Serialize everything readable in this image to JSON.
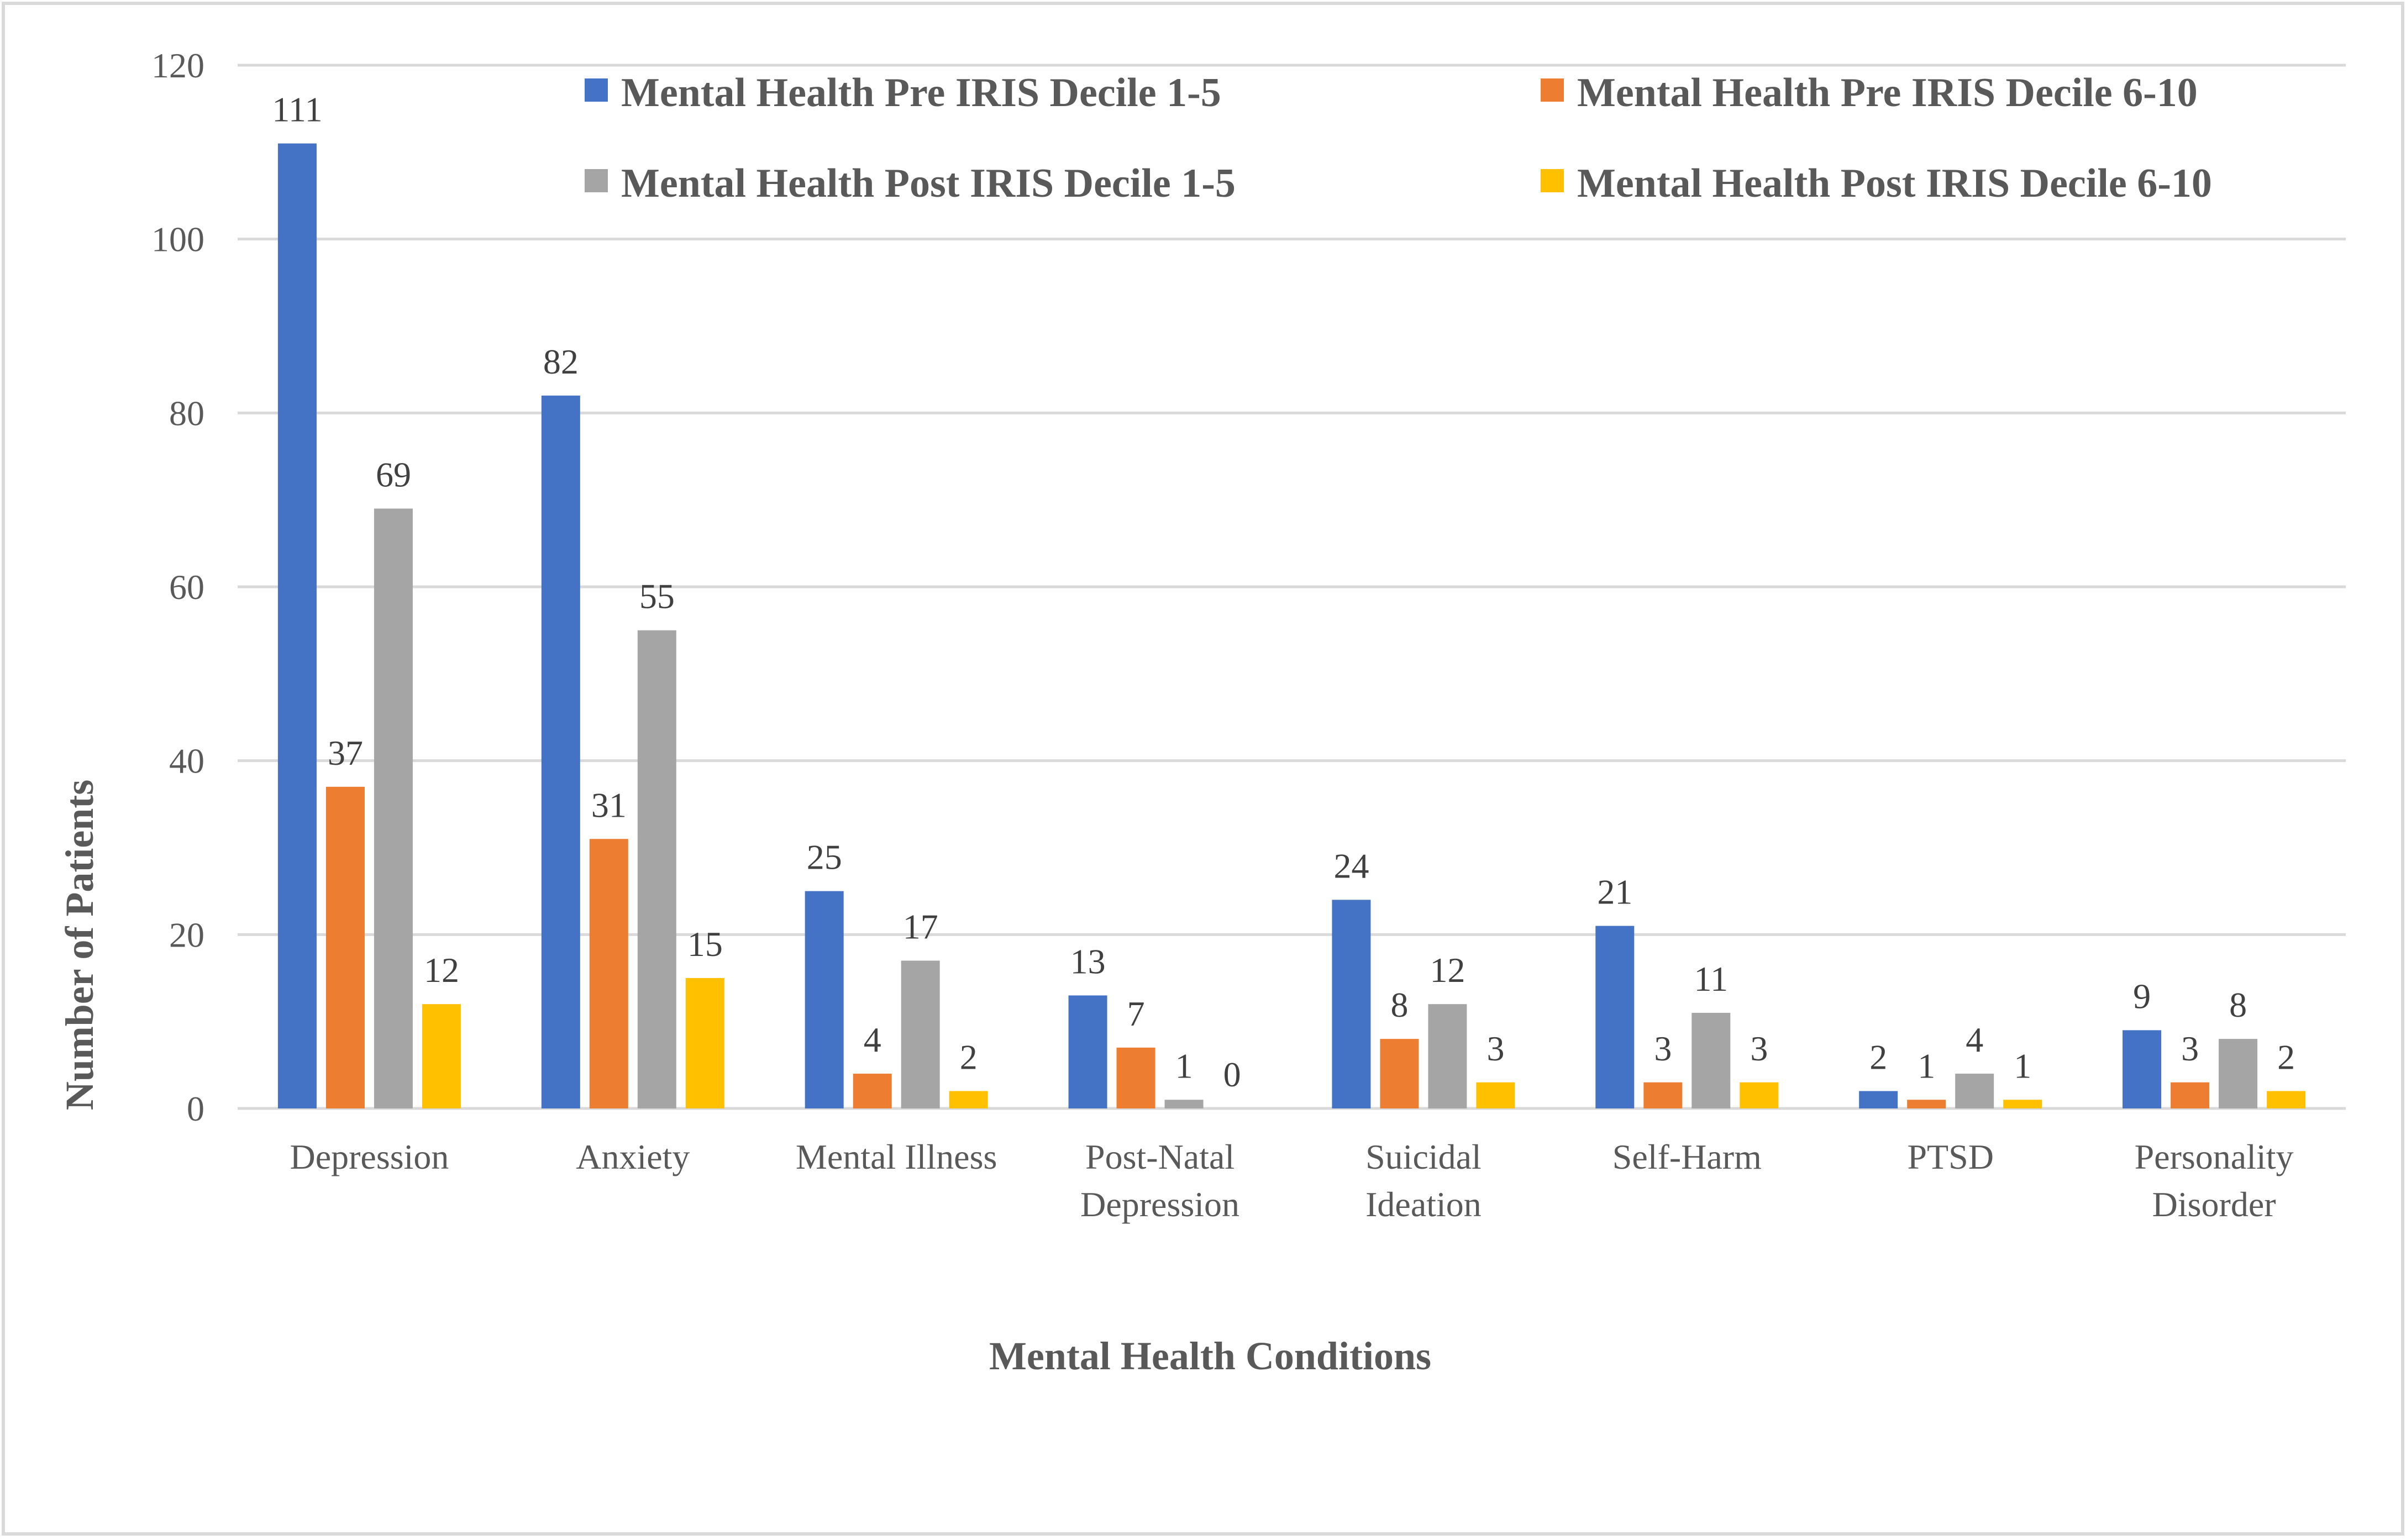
{
  "chart_data": {
    "type": "bar",
    "title": "",
    "xlabel": "Mental Health Conditions",
    "ylabel": "Number of Patients",
    "ylim": [
      0,
      120
    ],
    "yticks": [
      0,
      20,
      40,
      60,
      80,
      100,
      120
    ],
    "grid": true,
    "legend_position": "top",
    "categories": [
      [
        "Depression"
      ],
      [
        "Anxiety"
      ],
      [
        "Mental Illness"
      ],
      [
        "Post-Natal",
        "Depression"
      ],
      [
        "Suicidal",
        "Ideation"
      ],
      [
        "Self-Harm"
      ],
      [
        "PTSD"
      ],
      [
        "Personality",
        "Disorder"
      ]
    ],
    "series": [
      {
        "name": "Mental Health Pre IRIS Decile 1-5",
        "color": "#4472C4",
        "values": [
          111,
          82,
          25,
          13,
          24,
          21,
          2,
          9
        ]
      },
      {
        "name": "Mental Health Pre IRIS Decile 6-10",
        "color": "#ED7D31",
        "values": [
          37,
          31,
          4,
          7,
          8,
          3,
          1,
          3
        ]
      },
      {
        "name": "Mental Health Post IRIS Decile 1-5",
        "color": "#A5A5A5",
        "values": [
          69,
          55,
          17,
          1,
          12,
          11,
          4,
          8
        ]
      },
      {
        "name": "Mental Health Post IRIS Decile 6-10",
        "color": "#FFC000",
        "values": [
          12,
          15,
          2,
          0,
          3,
          3,
          1,
          2
        ]
      }
    ]
  }
}
